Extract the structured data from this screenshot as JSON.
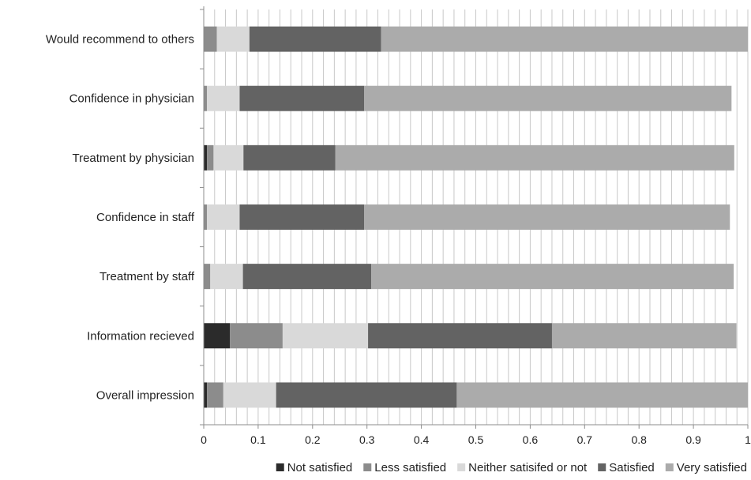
{
  "chart_data": {
    "type": "bar",
    "orientation": "horizontal",
    "stacked": true,
    "title": "",
    "xlabel": "",
    "ylabel": "",
    "xlim": [
      0,
      1
    ],
    "x_ticks": [
      "0",
      "0.1",
      "0.2",
      "0.3",
      "0.4",
      "0.5",
      "0.6",
      "0.7",
      "0.8",
      "0.9",
      "1"
    ],
    "grid": "vertical minor gridlines",
    "legend_position": "bottom",
    "categories": [
      "Would recommend to others",
      "Confidence in physician",
      "Treatment by physician",
      "Confidence in staff",
      "Treatment by staff",
      "Information recieved",
      "Overall impression"
    ],
    "series": [
      {
        "name": "Not satisfied",
        "color": "#2b2b2b",
        "values": [
          0,
          0,
          0.006,
          0,
          0,
          0.048,
          0.006
        ]
      },
      {
        "name": "Less satisfied",
        "color": "#8c8c8c",
        "values": [
          0.024,
          0.006,
          0.012,
          0.006,
          0.012,
          0.097,
          0.03
        ]
      },
      {
        "name": "Neither satisifed or not",
        "color": "#d9d9d9",
        "values": [
          0.06,
          0.06,
          0.055,
          0.06,
          0.06,
          0.157,
          0.097
        ]
      },
      {
        "name": "Satisfied",
        "color": "#636363",
        "values": [
          0.242,
          0.229,
          0.169,
          0.229,
          0.236,
          0.338,
          0.332
        ]
      },
      {
        "name": "Very satisfied",
        "color": "#ababab",
        "values": [
          0.674,
          0.675,
          0.733,
          0.672,
          0.666,
          0.339,
          0.535
        ]
      }
    ]
  }
}
